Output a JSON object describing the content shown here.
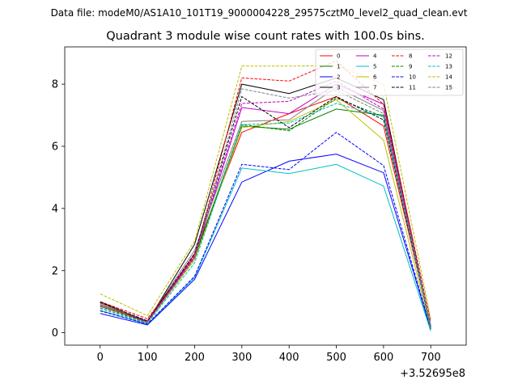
{
  "chart_data": {
    "type": "line",
    "suptitle": "Data file: modeM0/AS1A10_101T19_9000004228_29575cztM0_level2_quad_clean.evt",
    "title": "Quadrant 3 module wise count rates with 100.0s bins.",
    "xlabel": "",
    "ylabel": "",
    "x_offset_label": "+3.52695e8",
    "x": [
      0,
      100,
      200,
      300,
      400,
      500,
      600,
      700
    ],
    "xlim": [
      -75,
      775
    ],
    "ylim": [
      -0.4,
      9.2
    ],
    "xticks": [
      0,
      100,
      200,
      300,
      400,
      500,
      600,
      700
    ],
    "yticks": [
      0,
      2,
      4,
      6,
      8
    ],
    "legend_position": "top-right",
    "series": [
      {
        "name": "0",
        "color": "#ff0000",
        "dash": "solid",
        "values": [
          0.95,
          0.35,
          2.55,
          6.45,
          7.05,
          7.6,
          6.65,
          0.2
        ]
      },
      {
        "name": "1",
        "color": "#008000",
        "dash": "solid",
        "values": [
          0.9,
          0.35,
          2.45,
          6.65,
          6.55,
          7.2,
          7.0,
          0.15
        ]
      },
      {
        "name": "2",
        "color": "#0000ff",
        "dash": "solid",
        "values": [
          0.62,
          0.25,
          1.72,
          4.85,
          5.52,
          5.75,
          5.15,
          0.1
        ]
      },
      {
        "name": "3",
        "color": "#000000",
        "dash": "solid",
        "values": [
          1.0,
          0.35,
          2.85,
          8.0,
          7.7,
          8.2,
          7.5,
          0.15
        ]
      },
      {
        "name": "4",
        "color": "#bf00bf",
        "dash": "solid",
        "values": [
          0.85,
          0.35,
          2.45,
          7.25,
          7.05,
          8.0,
          7.35,
          0.15
        ]
      },
      {
        "name": "5",
        "color": "#00bfbf",
        "dash": "solid",
        "values": [
          0.72,
          0.28,
          1.78,
          5.3,
          5.12,
          5.42,
          4.72,
          0.05
        ]
      },
      {
        "name": "6",
        "color": "#bfbf00",
        "dash": "solid",
        "values": [
          0.88,
          0.32,
          2.35,
          6.6,
          6.8,
          7.5,
          6.2,
          0.1
        ]
      },
      {
        "name": "7",
        "color": "#808080",
        "dash": "solid",
        "values": [
          0.95,
          0.38,
          2.65,
          6.8,
          6.85,
          7.9,
          7.15,
          0.15
        ]
      },
      {
        "name": "8",
        "color": "#ff0000",
        "dash": "dashed",
        "values": [
          1.0,
          0.45,
          2.45,
          8.2,
          8.1,
          8.75,
          7.35,
          0.35
        ]
      },
      {
        "name": "9",
        "color": "#008000",
        "dash": "dashed",
        "values": [
          0.85,
          0.33,
          2.4,
          6.7,
          6.5,
          7.55,
          6.95,
          0.2
        ]
      },
      {
        "name": "10",
        "color": "#0000ff",
        "dash": "dashed",
        "values": [
          0.7,
          0.28,
          1.82,
          5.42,
          5.25,
          6.45,
          5.38,
          0.12
        ]
      },
      {
        "name": "11",
        "color": "#000000",
        "dash": "dashed",
        "values": [
          0.98,
          0.38,
          2.55,
          7.6,
          6.6,
          7.6,
          6.85,
          0.2
        ]
      },
      {
        "name": "12",
        "color": "#bf00bf",
        "dash": "dashed",
        "values": [
          0.9,
          0.35,
          2.5,
          7.38,
          7.45,
          8.1,
          7.2,
          0.2
        ]
      },
      {
        "name": "13",
        "color": "#00bfbf",
        "dash": "dashed",
        "values": [
          0.78,
          0.3,
          2.25,
          6.7,
          6.75,
          7.38,
          6.95,
          0.15
        ]
      },
      {
        "name": "14",
        "color": "#bfbf00",
        "dash": "dashed",
        "values": [
          1.25,
          0.55,
          2.95,
          8.58,
          8.58,
          8.6,
          8.0,
          0.45
        ]
      },
      {
        "name": "15",
        "color": "#808080",
        "dash": "dashed",
        "values": [
          0.8,
          0.32,
          2.4,
          7.85,
          7.55,
          7.8,
          7.05,
          0.25
        ]
      }
    ]
  }
}
